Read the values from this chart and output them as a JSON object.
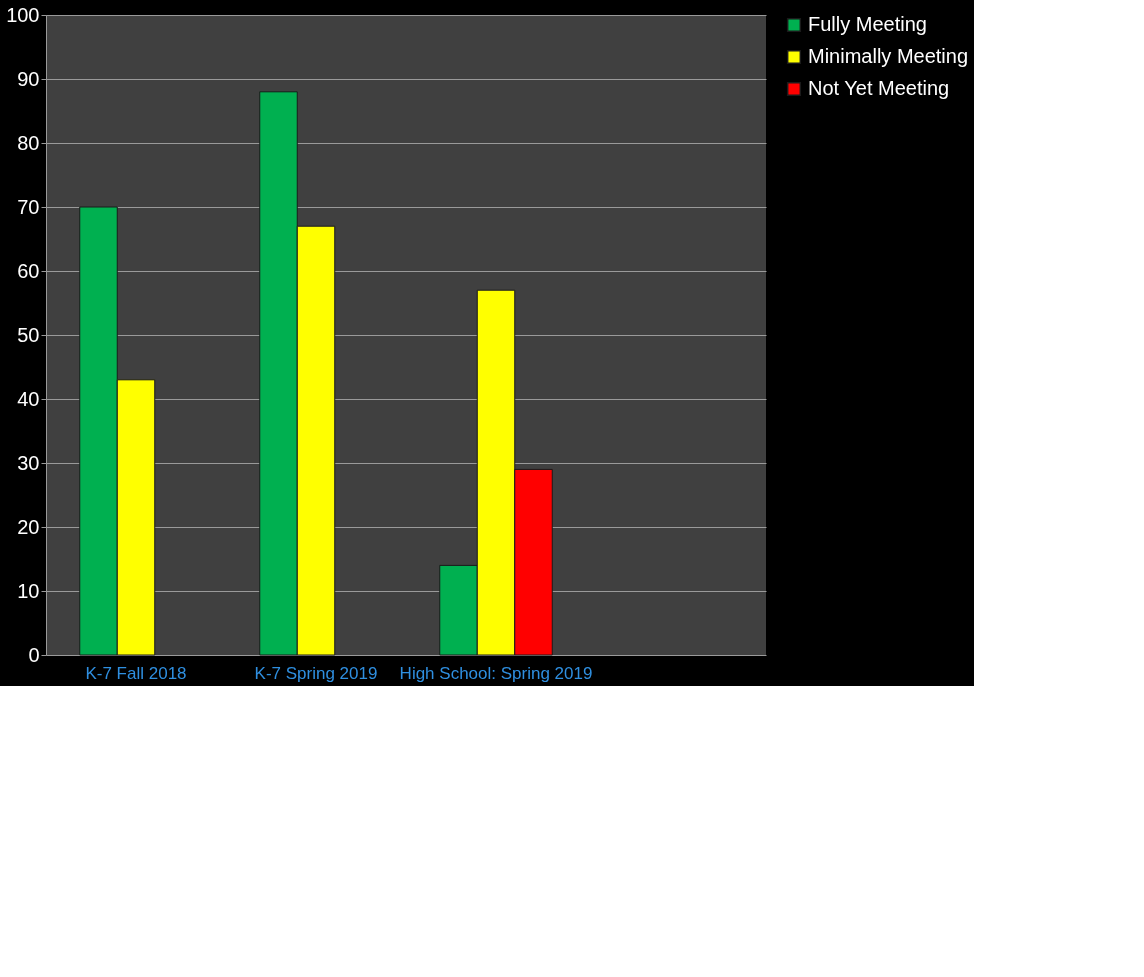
{
  "chart_data": {
    "type": "bar",
    "categories": [
      "K-7 Fall 2018",
      "K-7 Spring 2019",
      "High School: Spring 2019",
      null
    ],
    "series": [
      {
        "name": "Fully Meeting",
        "color": "#00b050",
        "values": [
          70,
          88,
          14,
          null
        ]
      },
      {
        "name": "Minimally Meeting",
        "color": "#ffff00",
        "values": [
          43,
          67,
          57,
          null
        ]
      },
      {
        "name": "Not Yet Meeting",
        "color": "#ff0000",
        "values": [
          null,
          null,
          29,
          null
        ]
      }
    ],
    "ylim": [
      0,
      100
    ],
    "yticks": [
      0,
      10,
      20,
      30,
      40,
      50,
      60,
      70,
      80,
      90,
      100
    ],
    "grid": "y",
    "legend": "right"
  }
}
